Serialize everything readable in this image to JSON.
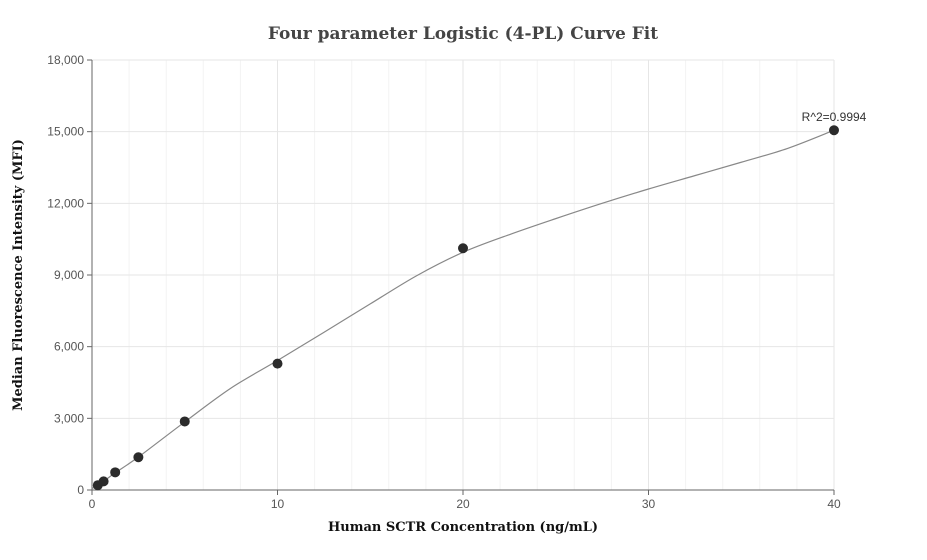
{
  "chart_data": {
    "type": "scatter",
    "title": "Four parameter Logistic (4-PL) Curve Fit",
    "xlabel": "Human SCTR Concentration (ng/mL)",
    "ylabel": "Median Fluorescence Intensity (MFI)",
    "xlim": [
      0,
      40
    ],
    "ylim": [
      0,
      18000
    ],
    "x_ticks": [
      0,
      10,
      20,
      30,
      40
    ],
    "x_tick_labels": [
      "0",
      "10",
      "20",
      "30",
      "40"
    ],
    "y_ticks": [
      0,
      3000,
      6000,
      9000,
      12000,
      15000,
      18000
    ],
    "y_tick_labels": [
      "0",
      "3,000",
      "6,000",
      "9,000",
      "12,000",
      "15,000",
      "18,000"
    ],
    "grid": true,
    "series": [
      {
        "type": "scatter",
        "x": [
          0.3125,
          0.625,
          1.25,
          2.5,
          5,
          10,
          20,
          40
        ],
        "y": [
          200,
          360,
          740,
          1370,
          2870,
          5290,
          10120,
          15060
        ]
      },
      {
        "type": "line",
        "x": [
          0,
          0.3125,
          0.625,
          1.25,
          2.5,
          5,
          7.5,
          10,
          12.5,
          15,
          17.5,
          20,
          22.5,
          25,
          27.5,
          30,
          32.5,
          35,
          37.5,
          40
        ],
        "y": [
          60,
          200,
          360,
          720,
          1380,
          2850,
          4270,
          5420,
          6600,
          7790,
          8970,
          9950,
          10690,
          11360,
          12000,
          12600,
          13160,
          13720,
          14300,
          15060
        ]
      }
    ],
    "annotations": [
      {
        "text": "R^2=0.9994",
        "x": 40,
        "y": 15060
      }
    ],
    "colors": {
      "marker": "#2b2b2b",
      "line": "#888888",
      "grid": "#e6e6e6",
      "axis": "#666666"
    }
  }
}
